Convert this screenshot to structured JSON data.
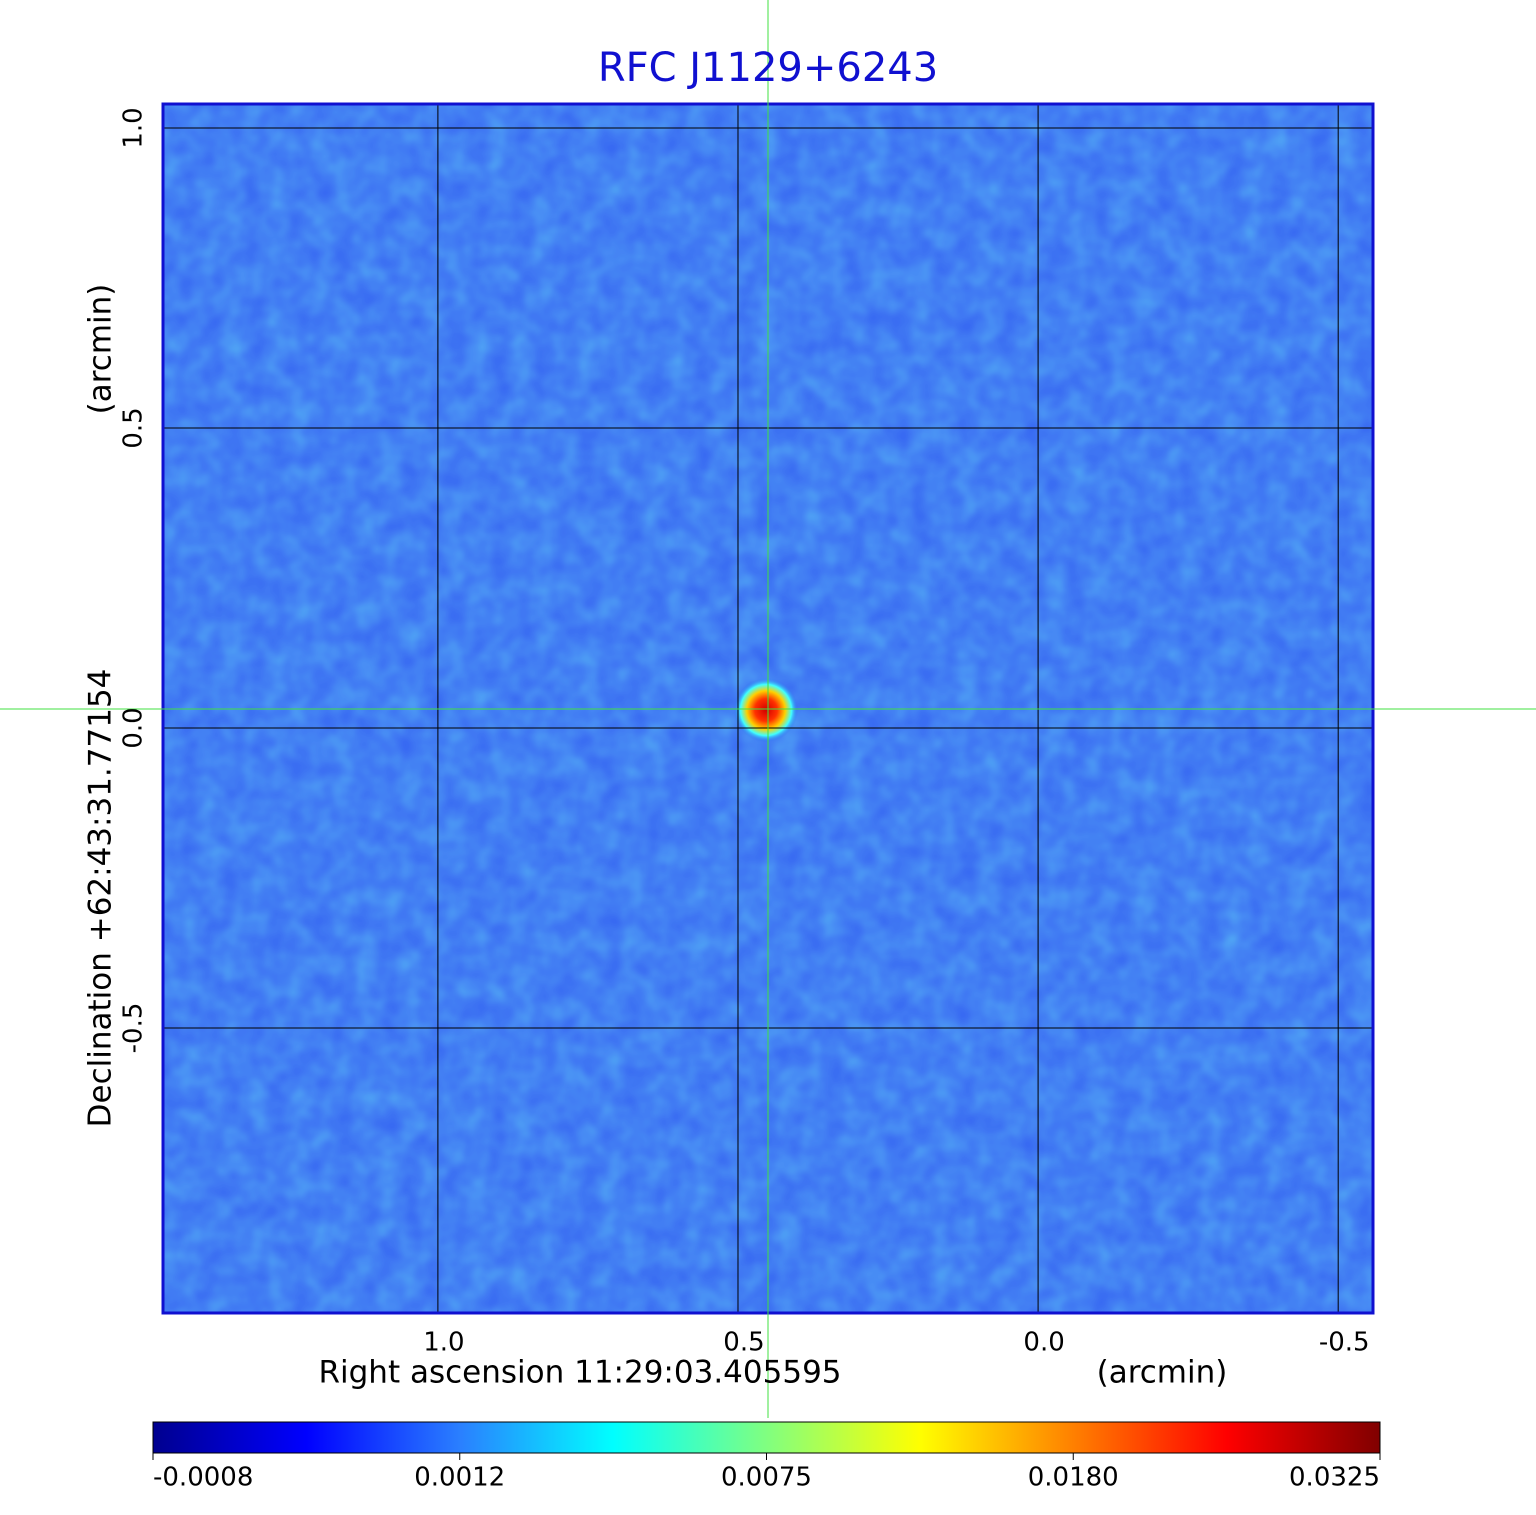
{
  "chart_data": {
    "type": "image",
    "title": "RFC J1129+6243",
    "xlabel": "Right ascension  11:29:03.405595",
    "xunit": "(arcmin)",
    "ylabel": "Declination  +62:43:31.77154",
    "yunit": "(arcmin)",
    "xlim": [
      1.458,
      -0.558
    ],
    "ylim": [
      -0.975,
      1.04
    ],
    "xticks": [
      {
        "value": 1,
        "label": "1.0"
      },
      0.5,
      {
        "value": 0,
        "label": "0.0"
      },
      -0.5
    ],
    "yticks": [
      {
        "value": 1,
        "label": "1.0"
      },
      0.5,
      {
        "value": 0,
        "label": "0.0"
      },
      -0.5
    ],
    "grid": true,
    "colorbar": {
      "ticks": [
        -0.0008,
        0.0012,
        0.0075,
        {
          "value": 0.018,
          "label": "0.0180"
        },
        0.0325
      ],
      "colors": [
        "#00008f",
        "#0000ff",
        "#2a7fff",
        "#00ffff",
        "#80ff80",
        "#ffff00",
        "#ff8000",
        "#ff0000",
        "#800000"
      ]
    }
  }
}
